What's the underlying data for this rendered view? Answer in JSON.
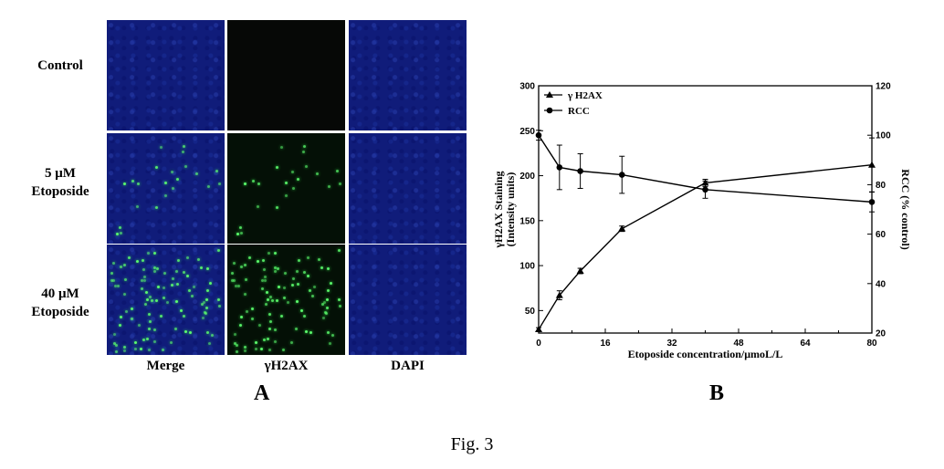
{
  "panel_a": {
    "letter": "A",
    "rows": [
      {
        "label_lines": [
          "Control"
        ]
      },
      {
        "label_lines": [
          "5 μM",
          "Etoposide"
        ]
      },
      {
        "label_lines": [
          "40 μM",
          "Etoposide"
        ]
      }
    ],
    "columns": [
      "Merge",
      "γH2AX",
      "DAPI"
    ],
    "foci_density": {
      "Control": 0,
      "5 μM Etoposide": "low",
      "40 μM Etoposide": "high"
    }
  },
  "panel_b": {
    "letter": "B"
  },
  "chart_data": {
    "type": "line",
    "xlabel": "Etoposide concentration/μmoL/L",
    "ylabel_lines": [
      "γH2AX Staining",
      "(Intensity units)"
    ],
    "y2label": "RCC (% control)",
    "x_ticks": [
      "0",
      "16",
      "32",
      "48",
      "64",
      "80"
    ],
    "xlim": [
      0,
      80
    ],
    "y_ticks": [
      "50",
      "100",
      "150",
      "200",
      "250",
      "300"
    ],
    "ylim": [
      25,
      300
    ],
    "y2_ticks": [
      "20",
      "40",
      "60",
      "80",
      "100",
      "120"
    ],
    "y2lim": [
      20,
      120
    ],
    "grid": false,
    "legend_position": "top-left",
    "series": [
      {
        "name": "γ H2AX",
        "marker": "triangle",
        "axis": "left",
        "x": [
          0,
          5,
          10,
          20,
          40,
          80
        ],
        "y": [
          29,
          67,
          94,
          141,
          192,
          212
        ],
        "err": [
          2,
          5,
          3,
          3,
          4,
          30
        ]
      },
      {
        "name": "RCC",
        "marker": "circle",
        "axis": "right",
        "x": [
          0,
          5,
          10,
          20,
          40,
          80
        ],
        "y": [
          100,
          87,
          85.5,
          84,
          78,
          73
        ],
        "err": [
          2,
          9,
          7,
          7.5,
          3.5,
          4
        ]
      }
    ]
  },
  "caption": "Fig. 3"
}
